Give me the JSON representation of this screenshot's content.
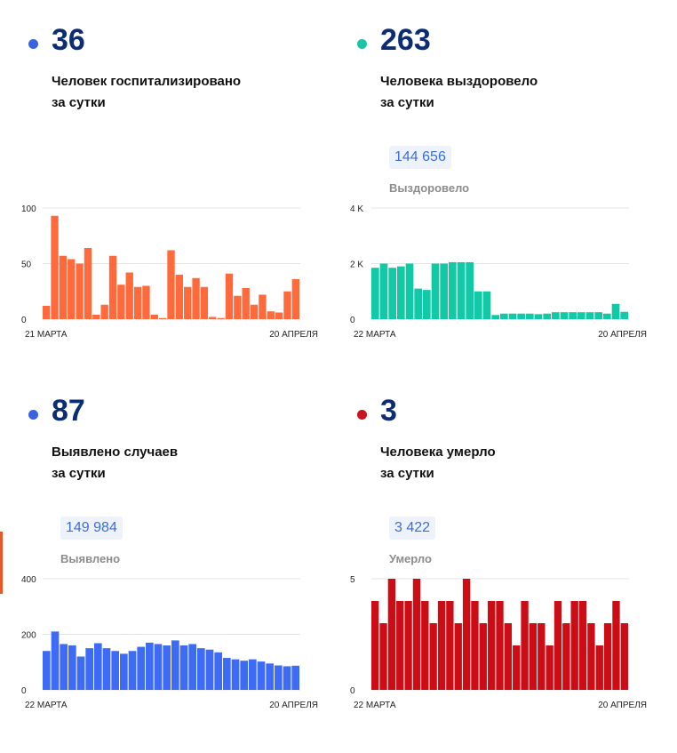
{
  "panels": [
    {
      "id": "hospitalized",
      "color": "#3a63e0",
      "bar_color": "#ff6a3d",
      "big_number": "36",
      "caption_line1": "Человек госпитализировано",
      "caption_line2": "за сутки",
      "total_value": "",
      "total_label": ""
    },
    {
      "id": "recovered",
      "color": "#1cc4a6",
      "bar_color": "#12c9a5",
      "big_number": "263",
      "caption_line1": "Человека выздоровело",
      "caption_line2": "за сутки",
      "total_value": "144 656",
      "total_label": "Выздоровело"
    },
    {
      "id": "cases",
      "color": "#3a63e0",
      "bar_color": "#3d6bf5",
      "big_number": "87",
      "caption_line1": "Выявлено случаев",
      "caption_line2": "за сутки",
      "total_value": "149 984",
      "total_label": "Выявлено"
    },
    {
      "id": "deaths",
      "color": "#c8141e",
      "bar_color": "#cc0d15",
      "big_number": "3",
      "caption_line1": "Человека умерло",
      "caption_line2": "за сутки",
      "total_value": "3 422",
      "total_label": "Умерло"
    }
  ],
  "chart_data": [
    {
      "type": "bar",
      "title": "",
      "yticks": [
        "100",
        "50",
        "0"
      ],
      "ylim": [
        0,
        100
      ],
      "x_start_label": "21 МАРТА",
      "x_end_label": "20 АПРЕЛЯ",
      "grid": true,
      "values": [
        12,
        93,
        57,
        54,
        50,
        64,
        4,
        13,
        57,
        31,
        42,
        29,
        30,
        4,
        1,
        62,
        40,
        29,
        37,
        29,
        2,
        1,
        41,
        21,
        28,
        13,
        22,
        7,
        6,
        25,
        36
      ]
    },
    {
      "type": "bar",
      "title": "",
      "yticks": [
        "4 K",
        "2 K",
        "0"
      ],
      "ylim": [
        0,
        4000
      ],
      "x_start_label": "22 МАРТА",
      "x_end_label": "20 АПРЕЛЯ",
      "grid": true,
      "values": [
        1850,
        2000,
        1850,
        1900,
        2000,
        1100,
        1050,
        2000,
        2000,
        2050,
        2050,
        2050,
        1000,
        1000,
        150,
        200,
        200,
        200,
        200,
        180,
        200,
        250,
        250,
        250,
        250,
        250,
        250,
        200,
        550,
        263
      ]
    },
    {
      "type": "bar",
      "title": "",
      "yticks": [
        "400",
        "200",
        "0"
      ],
      "ylim": [
        0,
        400
      ],
      "x_start_label": "22 МАРТА",
      "x_end_label": "20 АПРЕЛЯ",
      "grid": true,
      "values": [
        140,
        210,
        165,
        160,
        120,
        150,
        168,
        150,
        140,
        130,
        140,
        155,
        170,
        165,
        160,
        178,
        160,
        165,
        150,
        145,
        135,
        115,
        110,
        105,
        110,
        102,
        95,
        88,
        85,
        87
      ]
    },
    {
      "type": "bar",
      "title": "",
      "yticks": [
        "5",
        "0"
      ],
      "ylim": [
        0,
        5
      ],
      "x_start_label": "22 МАРТА",
      "x_end_label": "20 АПРЕЛЯ",
      "grid": true,
      "values": [
        4,
        3,
        5,
        4,
        4,
        5,
        4,
        3,
        4,
        4,
        3,
        5,
        4,
        3,
        4,
        4,
        3,
        2,
        4,
        3,
        3,
        2,
        4,
        3,
        4,
        4,
        3,
        2,
        3,
        4,
        3
      ]
    }
  ]
}
